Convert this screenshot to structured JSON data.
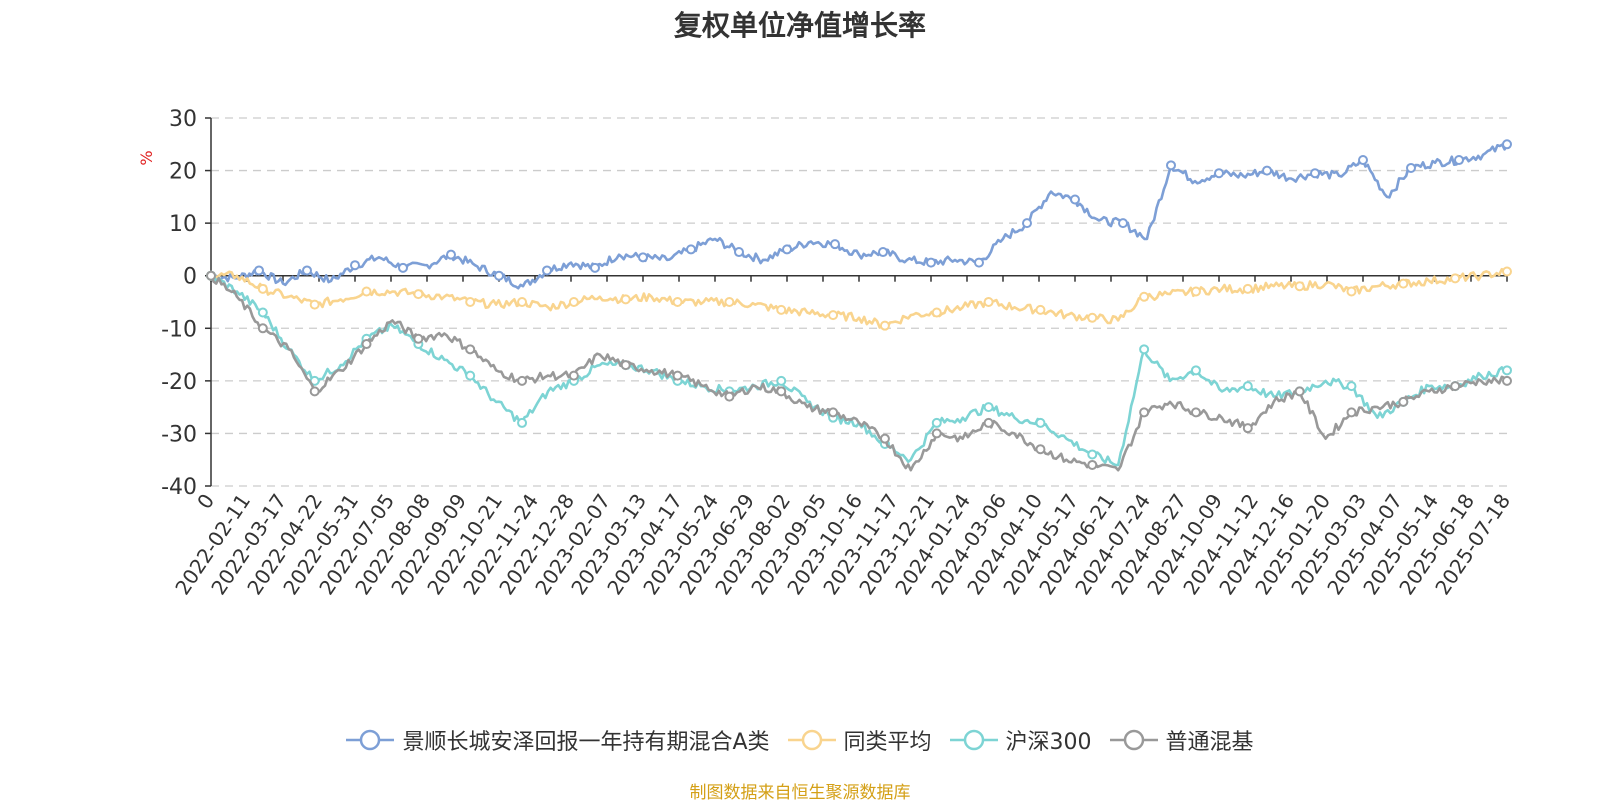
{
  "chart_data": {
    "type": "line",
    "title": "复权单位净值增长率",
    "ylabel": "%",
    "ylim": [
      -40,
      30
    ],
    "y_ticks": [
      30,
      20,
      10,
      0,
      -10,
      -20,
      -30,
      -40
    ],
    "grid": true,
    "legend_position": "bottom-center",
    "x_start_label": "0",
    "x_labels": [
      "2022-02-11",
      "2022-03-17",
      "2022-04-22",
      "2022-05-31",
      "2022-07-05",
      "2022-08-08",
      "2022-09-09",
      "2022-10-21",
      "2022-11-24",
      "2022-12-28",
      "2023-02-07",
      "2023-03-13",
      "2023-04-17",
      "2023-05-24",
      "2023-06-29",
      "2023-08-02",
      "2023-09-05",
      "2023-10-16",
      "2023-11-17",
      "2023-12-21",
      "2024-01-24",
      "2024-03-06",
      "2024-04-10",
      "2024-05-17",
      "2024-06-21",
      "2024-07-24",
      "2024-08-27",
      "2024-10-09",
      "2024-11-12",
      "2024-12-16",
      "2025-01-20",
      "2025-03-03",
      "2025-04-07",
      "2025-05-14",
      "2025-06-18",
      "2025-07-18"
    ],
    "series": [
      {
        "name": "景顺长城安泽回报一年持有期混合A类",
        "color": "#7d9fd6",
        "values": [
          0,
          -0.5,
          1,
          -1.5,
          1,
          -1,
          2,
          3.5,
          1.5,
          2,
          4,
          2,
          0,
          -2,
          1,
          2.5,
          1.5,
          4,
          3.5,
          3,
          5,
          7,
          4.5,
          3,
          5,
          6.5,
          6,
          4,
          4.5,
          3,
          2.5,
          3,
          2.5,
          7,
          10,
          16,
          14.5,
          10.5,
          10,
          7,
          21,
          18,
          19.5,
          19,
          20,
          18.5,
          19.5,
          19,
          22,
          15,
          20.5,
          21.5,
          22,
          23,
          25
        ]
      },
      {
        "name": "同类平均",
        "color": "#f9d48e",
        "values": [
          0,
          0,
          -2.5,
          -4,
          -5.5,
          -4.5,
          -3,
          -3,
          -3.5,
          -4,
          -5,
          -5.5,
          -5,
          -6,
          -5,
          -4,
          -4.5,
          -4,
          -5,
          -5,
          -5,
          -5.5,
          -6.5,
          -7,
          -7.5,
          -8,
          -9.5,
          -7.5,
          -7,
          -6,
          -5,
          -6,
          -6.5,
          -7.5,
          -8,
          -8.5,
          -4,
          -3.5,
          -3,
          -2.5,
          -2.5,
          -2,
          -2,
          -1.5,
          -3,
          -2,
          -1.5,
          -1,
          -0.5,
          0,
          0.8
        ]
      },
      {
        "name": "沪深300",
        "color": "#7dd4d4",
        "values": [
          0,
          -3,
          -7,
          -14,
          -20,
          -17,
          -12,
          -9.5,
          -13,
          -16,
          -19,
          -24,
          -28,
          -22,
          -20,
          -17,
          -17,
          -18,
          -20,
          -21,
          -22,
          -21,
          -20,
          -24,
          -27,
          -28,
          -32,
          -35,
          -28,
          -27,
          -25,
          -27,
          -28,
          -31,
          -34,
          -36,
          -14,
          -20,
          -18,
          -22,
          -21,
          -23,
          -22,
          -20,
          -21,
          -27,
          -24,
          -21,
          -21,
          -19,
          -18
        ]
      },
      {
        "name": "普通混基",
        "color": "#999999",
        "values": [
          0,
          -4,
          -10,
          -14,
          -22,
          -18,
          -13,
          -8.5,
          -12,
          -11,
          -14,
          -18,
          -20,
          -19,
          -19,
          -15,
          -17,
          -18,
          -19,
          -21,
          -23,
          -21,
          -22,
          -25,
          -26,
          -28,
          -31,
          -37,
          -30,
          -31,
          -28,
          -30,
          -33,
          -35,
          -36,
          -37,
          -26,
          -24,
          -26,
          -27,
          -29,
          -24,
          -22,
          -31,
          -26,
          -25,
          -24,
          -22,
          -21,
          -20,
          -20
        ]
      }
    ]
  },
  "source_note": "制图数据来自恒生聚源数据库"
}
